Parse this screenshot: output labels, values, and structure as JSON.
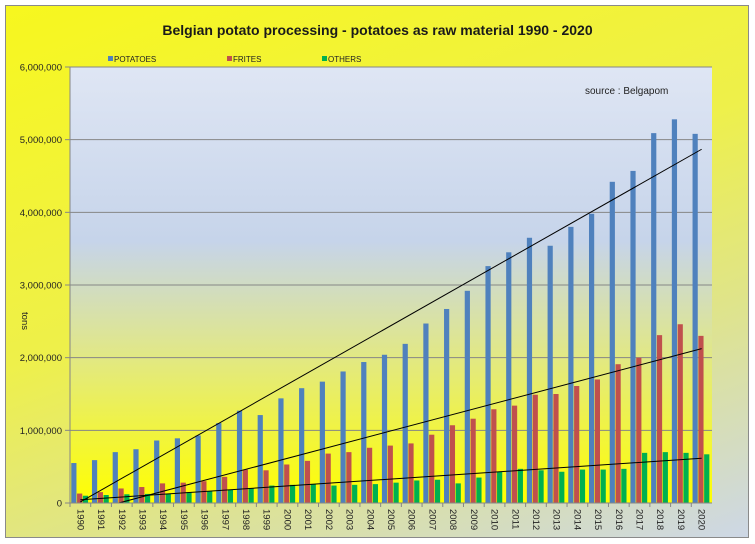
{
  "chart_data": {
    "type": "bar",
    "title": "Belgian potato processing - potatoes as raw material 1990 - 2020",
    "ylabel": "tons",
    "xlabel": "",
    "annotation": "source : Belgapom",
    "ylim": [
      0,
      6000000
    ],
    "yticks": [
      0,
      1000000,
      2000000,
      3000000,
      4000000,
      5000000,
      6000000
    ],
    "ytick_labels": [
      "0",
      "1,000,000",
      "2,000,000",
      "3,000,000",
      "4,000,000",
      "5,000,000",
      "6,000,000"
    ],
    "grid": true,
    "legend_position": "top",
    "trendlines": "linear",
    "categories": [
      "1990",
      "1991",
      "1992",
      "1993",
      "1994",
      "1995",
      "1996",
      "1997",
      "1998",
      "1999",
      "2000",
      "2001",
      "2002",
      "2003",
      "2004",
      "2005",
      "2006",
      "2007",
      "2008",
      "2009",
      "2010",
      "2011",
      "2012",
      "2013",
      "2014",
      "2015",
      "2016",
      "2017",
      "2018",
      "2019",
      "2020"
    ],
    "series": [
      {
        "name": "POTATOES",
        "color": "#4f81bd",
        "values": [
          550000,
          590000,
          700000,
          740000,
          860000,
          890000,
          930000,
          1100000,
          1270000,
          1210000,
          1440000,
          1580000,
          1670000,
          1810000,
          1940000,
          2040000,
          2190000,
          2470000,
          2670000,
          2920000,
          3260000,
          3450000,
          3650000,
          3540000,
          3800000,
          3980000,
          4420000,
          4570000,
          5090000,
          5280000,
          5080000
        ]
      },
      {
        "name": "FRITES",
        "color": "#c0504d",
        "values": [
          130000,
          150000,
          200000,
          220000,
          270000,
          280000,
          300000,
          360000,
          460000,
          450000,
          530000,
          580000,
          680000,
          700000,
          760000,
          790000,
          820000,
          940000,
          1070000,
          1160000,
          1290000,
          1340000,
          1490000,
          1500000,
          1610000,
          1700000,
          1910000,
          2000000,
          2310000,
          2460000,
          2300000
        ]
      },
      {
        "name": "OTHERS",
        "color": "#00b050",
        "values": [
          100000,
          110000,
          120000,
          125000,
          130000,
          150000,
          160000,
          180000,
          200000,
          240000,
          250000,
          260000,
          240000,
          250000,
          260000,
          280000,
          310000,
          320000,
          270000,
          350000,
          430000,
          470000,
          450000,
          430000,
          460000,
          460000,
          470000,
          690000,
          700000,
          690000,
          670000
        ]
      }
    ]
  }
}
